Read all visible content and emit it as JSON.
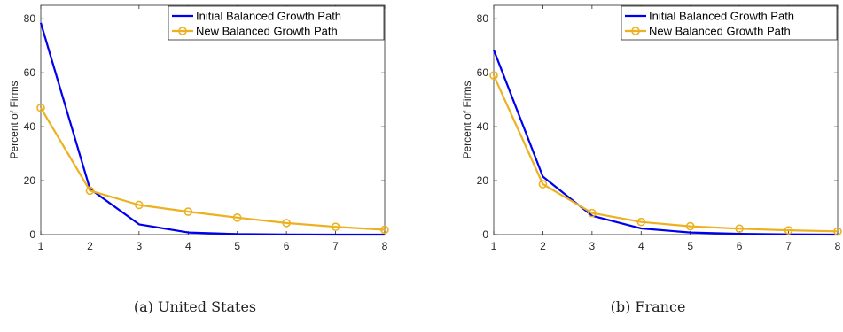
{
  "chart_data": [
    {
      "type": "line",
      "caption": "(a)  United States",
      "ylabel": "Percent of Firms",
      "xlim": [
        1,
        8
      ],
      "ylim": [
        0,
        85
      ],
      "xticks": [
        1,
        2,
        3,
        4,
        5,
        6,
        7,
        8
      ],
      "yticks": [
        0,
        20,
        40,
        60,
        80
      ],
      "grid": false,
      "legend_position": "top-right",
      "series": [
        {
          "name": "Initial Balanced Growth Path",
          "color": "#0000ee",
          "marker": "none",
          "x": [
            1,
            2,
            3,
            4,
            5,
            6,
            7,
            8
          ],
          "values": [
            78.5,
            17.0,
            3.8,
            0.8,
            0.2,
            0.05,
            0.0,
            0.0
          ]
        },
        {
          "name": "New Balanced Growth Path",
          "color": "#edb120",
          "marker": "circle",
          "x": [
            1,
            2,
            3,
            4,
            5,
            6,
            7,
            8
          ],
          "values": [
            47.0,
            16.3,
            11.0,
            8.5,
            6.3,
            4.3,
            2.9,
            1.8
          ]
        }
      ]
    },
    {
      "type": "line",
      "caption": "(b)  France",
      "ylabel": "Percent of Firms",
      "xlim": [
        1,
        8
      ],
      "ylim": [
        0,
        85
      ],
      "xticks": [
        1,
        2,
        3,
        4,
        5,
        6,
        7,
        8
      ],
      "yticks": [
        0,
        20,
        40,
        60,
        80
      ],
      "grid": false,
      "legend_position": "top-right",
      "series": [
        {
          "name": "Initial Balanced Growth Path",
          "color": "#0000ee",
          "marker": "none",
          "x": [
            1,
            2,
            3,
            4,
            5,
            6,
            7,
            8
          ],
          "values": [
            68.5,
            21.5,
            7.0,
            2.3,
            0.8,
            0.3,
            0.1,
            0.0
          ]
        },
        {
          "name": "New Balanced Growth Path",
          "color": "#edb120",
          "marker": "circle",
          "x": [
            1,
            2,
            3,
            4,
            5,
            6,
            7,
            8
          ],
          "values": [
            59.0,
            18.7,
            8.0,
            4.7,
            3.1,
            2.2,
            1.6,
            1.2
          ]
        }
      ]
    }
  ]
}
